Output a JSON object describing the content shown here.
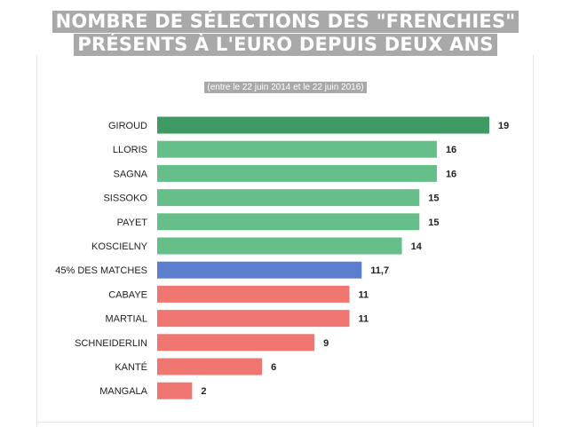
{
  "chart_data": {
    "type": "bar",
    "orientation": "horizontal",
    "title_lines": [
      "NOMBRE DE SÉLECTIONS DES \"FRENCHIES\"",
      "PRÉSENTS À L'EURO DEPUIS DEUX ANS"
    ],
    "subtitle": "(entre le 22 juin 2014 et le 22 juin 2016)",
    "categories": [
      "GIROUD",
      "LLORIS",
      "SAGNA",
      "SISSOKO",
      "PAYET",
      "KOSCIELNY",
      "45% DES MATCHES",
      "CABAYE",
      "MARTIAL",
      "SCHNEIDERLIN",
      "KANTÉ",
      "MANGALA"
    ],
    "values": [
      19,
      16,
      16,
      15,
      15,
      14,
      11.7,
      11,
      11,
      9,
      6,
      2
    ],
    "value_labels": [
      "19",
      "16",
      "16",
      "15",
      "15",
      "14",
      "11,7",
      "11",
      "11",
      "9",
      "6",
      "2"
    ],
    "bar_colors": [
      "#3d9a62",
      "#66bf88",
      "#66bf88",
      "#66bf88",
      "#66bf88",
      "#66bf88",
      "#5b7fce",
      "#ef7671",
      "#ef7671",
      "#ef7671",
      "#ef7671",
      "#ef7671"
    ],
    "xlim": [
      0,
      19
    ],
    "grid": false,
    "legend": "none"
  },
  "colors": {
    "title_bg": "#a9a9a9",
    "title_text": "#ffffff",
    "top_bar": "#3d9a62",
    "above_average": "#66bf88",
    "average": "#5b7fce",
    "below_average": "#ef7671"
  }
}
